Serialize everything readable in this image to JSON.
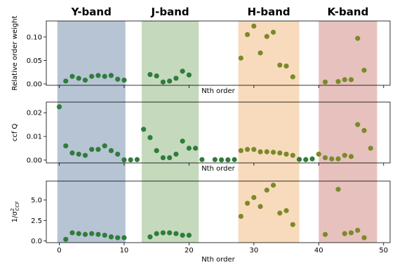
{
  "chart_data": {
    "type": "scatter",
    "xlabel": "Nth order",
    "xlim": [
      -2,
      51
    ],
    "xticks": [
      0,
      10,
      20,
      30,
      40,
      50
    ],
    "bands": [
      {
        "label": "Y-band",
        "x0": -0.3,
        "x1": 10.2,
        "color": "#b7c4d4"
      },
      {
        "label": "J-band",
        "x0": 12.7,
        "x1": 21.5,
        "color": "#c5d9bd"
      },
      {
        "label": "H-band",
        "x0": 27.6,
        "x1": 37.0,
        "color": "#f8dbbc"
      },
      {
        "label": "K-band",
        "x0": 40.0,
        "x1": 49.0,
        "color": "#e7c1bd"
      }
    ],
    "point_colors": {
      "green": "#2e7d3a",
      "olive": "#7a8a2a"
    },
    "panels": [
      {
        "ylabel": "Relative order weight",
        "ylim": [
          -0.003,
          0.134
        ],
        "yticks": [
          0.0,
          0.05,
          0.1
        ],
        "ytick_labels": [
          "0.00",
          "0.05",
          "0.10"
        ],
        "inner_xlabel": "Nth order",
        "points": [
          [
            1,
            0.006,
            "green"
          ],
          [
            2,
            0.016,
            "green"
          ],
          [
            3,
            0.012,
            "green"
          ],
          [
            4,
            0.008,
            "green"
          ],
          [
            5,
            0.016,
            "green"
          ],
          [
            6,
            0.018,
            "green"
          ],
          [
            7,
            0.016,
            "green"
          ],
          [
            8,
            0.018,
            "green"
          ],
          [
            9,
            0.01,
            "green"
          ],
          [
            10,
            0.008,
            "green"
          ],
          [
            14,
            0.02,
            "green"
          ],
          [
            15,
            0.017,
            "green"
          ],
          [
            16,
            0.004,
            "green"
          ],
          [
            17,
            0.006,
            "green"
          ],
          [
            18,
            0.012,
            "green"
          ],
          [
            19,
            0.027,
            "green"
          ],
          [
            20,
            0.019,
            "green"
          ],
          [
            28,
            0.055,
            "olive"
          ],
          [
            29,
            0.105,
            "olive"
          ],
          [
            30,
            0.123,
            "olive"
          ],
          [
            31,
            0.066,
            "olive"
          ],
          [
            32,
            0.101,
            "olive"
          ],
          [
            33,
            0.11,
            "olive"
          ],
          [
            34,
            0.04,
            "olive"
          ],
          [
            35,
            0.038,
            "olive"
          ],
          [
            36,
            0.015,
            "olive"
          ],
          [
            41,
            0.004,
            "olive"
          ],
          [
            43,
            0.005,
            "olive"
          ],
          [
            44,
            0.009,
            "olive"
          ],
          [
            45,
            0.009,
            "olive"
          ],
          [
            46,
            0.097,
            "olive"
          ],
          [
            47,
            0.029,
            "olive"
          ]
        ]
      },
      {
        "ylabel": "ccf Q",
        "ylim": [
          -0.0012,
          0.0245
        ],
        "yticks": [
          0.0,
          0.01,
          0.02
        ],
        "ytick_labels": [
          "0.00",
          "0.01",
          "0.02"
        ],
        "inner_xlabel": "Nth order",
        "points": [
          [
            0,
            0.0225,
            "green"
          ],
          [
            1,
            0.006,
            "green"
          ],
          [
            2,
            0.003,
            "green"
          ],
          [
            3,
            0.0025,
            "green"
          ],
          [
            4,
            0.002,
            "green"
          ],
          [
            5,
            0.0045,
            "green"
          ],
          [
            6,
            0.0045,
            "green"
          ],
          [
            7,
            0.006,
            "green"
          ],
          [
            8,
            0.004,
            "green"
          ],
          [
            9,
            0.0025,
            "green"
          ],
          [
            10,
            0.0001,
            "green"
          ],
          [
            11,
            0.0001,
            "green"
          ],
          [
            12,
            0.0002,
            "green"
          ],
          [
            13,
            0.013,
            "green"
          ],
          [
            14,
            0.0095,
            "green"
          ],
          [
            15,
            0.004,
            "green"
          ],
          [
            16,
            0.001,
            "green"
          ],
          [
            17,
            0.001,
            "green"
          ],
          [
            18,
            0.0025,
            "green"
          ],
          [
            19,
            0.008,
            "green"
          ],
          [
            20,
            0.005,
            "green"
          ],
          [
            21,
            0.005,
            "green"
          ],
          [
            22,
            0.0002,
            "green"
          ],
          [
            24,
            0.0002,
            "green"
          ],
          [
            25,
            0.0001,
            "green"
          ],
          [
            26,
            0.0001,
            "green"
          ],
          [
            27,
            0.0002,
            "green"
          ],
          [
            28,
            0.004,
            "olive"
          ],
          [
            29,
            0.0045,
            "olive"
          ],
          [
            30,
            0.0045,
            "olive"
          ],
          [
            31,
            0.0035,
            "olive"
          ],
          [
            32,
            0.0035,
            "olive"
          ],
          [
            33,
            0.0033,
            "olive"
          ],
          [
            34,
            0.003,
            "olive"
          ],
          [
            35,
            0.0025,
            "olive"
          ],
          [
            36,
            0.002,
            "olive"
          ],
          [
            37,
            0.0003,
            "green"
          ],
          [
            38,
            0.0002,
            "green"
          ],
          [
            39,
            0.0005,
            "green"
          ],
          [
            40,
            0.0025,
            "olive"
          ],
          [
            41,
            0.001,
            "olive"
          ],
          [
            42,
            0.0005,
            "olive"
          ],
          [
            43,
            0.0005,
            "olive"
          ],
          [
            44,
            0.002,
            "olive"
          ],
          [
            45,
            0.0015,
            "olive"
          ],
          [
            46,
            0.015,
            "olive"
          ],
          [
            47,
            0.0125,
            "olive"
          ],
          [
            48,
            0.005,
            "olive"
          ]
        ]
      },
      {
        "ylabel": "1/σ²_CCF",
        "ylim": [
          -0.2,
          7.3
        ],
        "yticks": [
          0.0,
          2.5,
          5.0
        ],
        "ytick_labels": [
          "0.0",
          "2.5",
          "5.0"
        ],
        "inner_xlabel": "",
        "points": [
          [
            1,
            0.2,
            "green"
          ],
          [
            2,
            1.0,
            "green"
          ],
          [
            3,
            0.9,
            "green"
          ],
          [
            4,
            0.8,
            "green"
          ],
          [
            5,
            0.9,
            "green"
          ],
          [
            6,
            0.8,
            "green"
          ],
          [
            7,
            0.7,
            "green"
          ],
          [
            8,
            0.5,
            "green"
          ],
          [
            9,
            0.4,
            "green"
          ],
          [
            10,
            0.4,
            "green"
          ],
          [
            14,
            0.5,
            "green"
          ],
          [
            15,
            0.9,
            "green"
          ],
          [
            16,
            1.0,
            "green"
          ],
          [
            17,
            1.0,
            "green"
          ],
          [
            18,
            0.9,
            "green"
          ],
          [
            19,
            0.7,
            "green"
          ],
          [
            20,
            0.7,
            "green"
          ],
          [
            28,
            3.0,
            "olive"
          ],
          [
            29,
            4.6,
            "olive"
          ],
          [
            30,
            5.3,
            "olive"
          ],
          [
            31,
            4.2,
            "olive"
          ],
          [
            32,
            6.2,
            "olive"
          ],
          [
            33,
            6.8,
            "olive"
          ],
          [
            34,
            3.4,
            "olive"
          ],
          [
            35,
            3.7,
            "olive"
          ],
          [
            36,
            2.0,
            "olive"
          ],
          [
            41,
            0.8,
            "olive"
          ],
          [
            43,
            6.3,
            "olive"
          ],
          [
            44,
            0.9,
            "olive"
          ],
          [
            45,
            1.0,
            "olive"
          ],
          [
            46,
            1.3,
            "olive"
          ],
          [
            47,
            0.4,
            "olive"
          ]
        ]
      }
    ]
  }
}
